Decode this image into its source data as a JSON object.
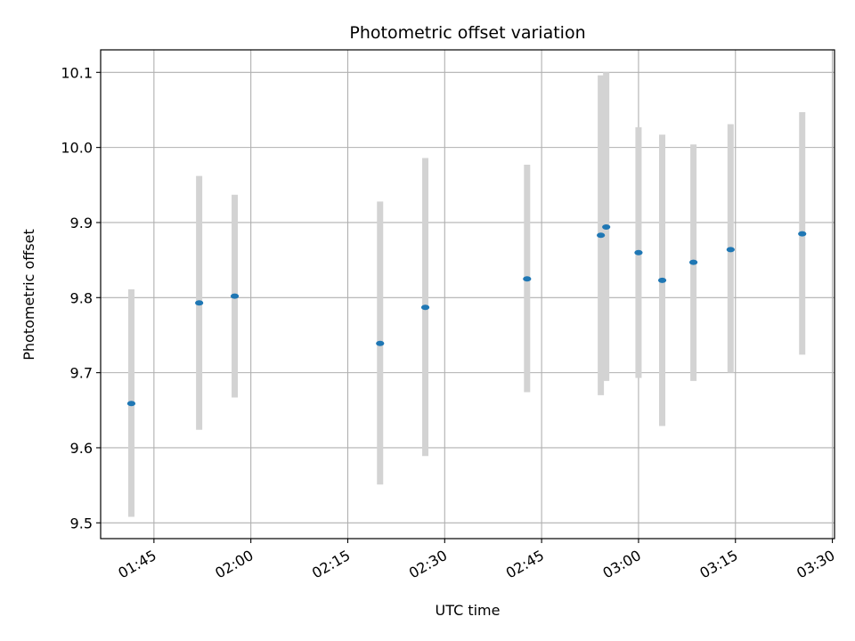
{
  "chart_data": {
    "type": "scatter",
    "title": "Photometric offset variation",
    "xlabel": "UTC time",
    "ylabel": "Photometric offset",
    "x_ticks": [
      "01:45",
      "02:00",
      "02:15",
      "02:30",
      "02:45",
      "03:00",
      "03:15",
      "03:30"
    ],
    "y_ticks": [
      "9.5",
      "9.6",
      "9.7",
      "9.8",
      "9.9",
      "10.0",
      "10.1"
    ],
    "xlim": [
      "01:36:45",
      "03:30:20"
    ],
    "ylim": [
      9.479,
      10.13
    ],
    "grid": true,
    "colors": {
      "marker": "#1f77b4",
      "error_bar": "#d3d3d3",
      "grid": "#b0b0b0"
    },
    "series": [
      {
        "points": [
          {
            "x": "01:41:30",
            "y": 9.659,
            "ylow": 9.508,
            "yhigh": 9.811
          },
          {
            "x": "01:52:00",
            "y": 9.793,
            "ylow": 9.624,
            "yhigh": 9.962
          },
          {
            "x": "01:57:30",
            "y": 9.802,
            "ylow": 9.667,
            "yhigh": 9.937
          },
          {
            "x": "02:20:00",
            "y": 9.739,
            "ylow": 9.551,
            "yhigh": 9.928
          },
          {
            "x": "02:27:00",
            "y": 9.787,
            "ylow": 9.589,
            "yhigh": 9.986
          },
          {
            "x": "02:42:45",
            "y": 9.825,
            "ylow": 9.674,
            "yhigh": 9.977
          },
          {
            "x": "02:54:10",
            "y": 9.883,
            "ylow": 9.67,
            "yhigh": 10.096
          },
          {
            "x": "02:55:00",
            "y": 9.894,
            "ylow": 9.689,
            "yhigh": 10.1
          },
          {
            "x": "03:00:00",
            "y": 9.86,
            "ylow": 9.693,
            "yhigh": 10.027
          },
          {
            "x": "03:03:40",
            "y": 9.823,
            "ylow": 9.629,
            "yhigh": 10.017
          },
          {
            "x": "03:08:30",
            "y": 9.847,
            "ylow": 9.689,
            "yhigh": 10.004
          },
          {
            "x": "03:14:15",
            "y": 9.864,
            "ylow": 9.7,
            "yhigh": 10.031
          },
          {
            "x": "03:25:20",
            "y": 9.885,
            "ylow": 9.724,
            "yhigh": 10.047
          }
        ]
      }
    ]
  }
}
